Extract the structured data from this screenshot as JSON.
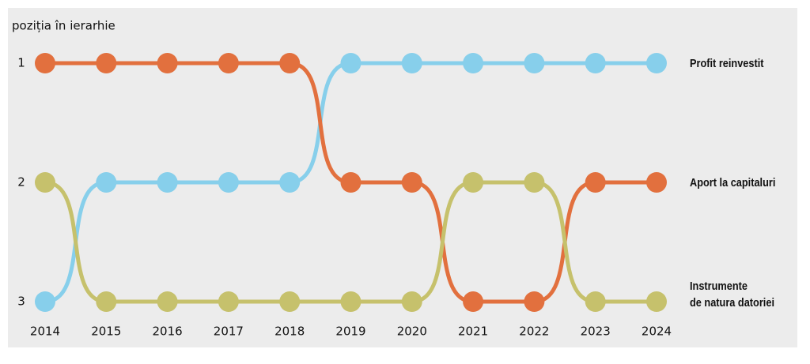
{
  "chart_data": {
    "type": "bump",
    "y_label": "poziția în ierarhie",
    "x": [
      2014,
      2015,
      2016,
      2017,
      2018,
      2019,
      2020,
      2021,
      2022,
      2023,
      2024
    ],
    "xlim": [
      2014,
      2024
    ],
    "xticks": [
      2014,
      2015,
      2016,
      2017,
      2018,
      2019,
      2020,
      2021,
      2022,
      2023,
      2024
    ],
    "ylim": [
      1,
      3
    ],
    "yticks": [
      1,
      2,
      3
    ],
    "y_inverted": true,
    "grid": false,
    "series": [
      {
        "name": "Profit reinvestit",
        "color": "#87cfeb",
        "values": [
          3,
          2,
          2,
          2,
          2,
          1,
          1,
          1,
          1,
          1,
          1
        ]
      },
      {
        "name": "Aport la capitaluri",
        "color": "#e2703e",
        "values": [
          1,
          1,
          1,
          1,
          1,
          2,
          2,
          3,
          3,
          2,
          2
        ]
      },
      {
        "name": "Instrumente\nde natura datoriei",
        "color": "#c6c16c",
        "values": [
          2,
          3,
          3,
          3,
          3,
          3,
          3,
          2,
          2,
          3,
          3
        ]
      }
    ]
  }
}
